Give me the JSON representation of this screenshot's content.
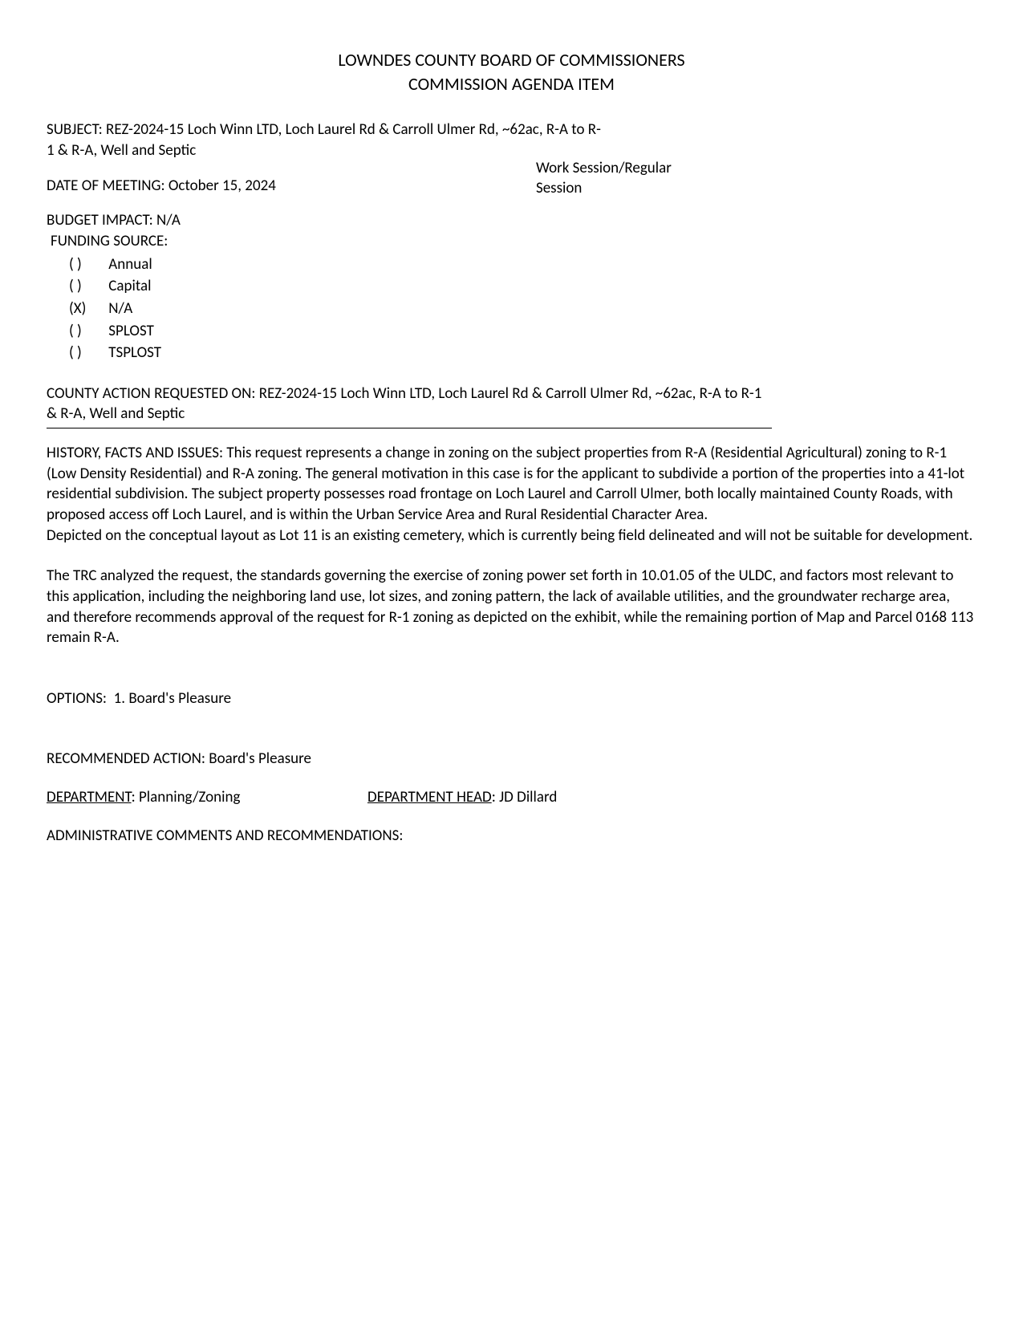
{
  "header": {
    "line1": "LOWNDES COUNTY BOARD OF COMMISSIONERS",
    "line2": "COMMISSION AGENDA ITEM"
  },
  "subject": {
    "label": "SUBJECT:",
    "text": "REZ-2024-15 Loch Winn LTD, Loch Laurel Rd & Carroll Ulmer Rd, ~62ac, R-A to R-1 & R-A, Well and Septic"
  },
  "meeting": {
    "label": "DATE OF MEETING:",
    "date": "October 15, 2024",
    "session_type": "Work Session/Regular Session"
  },
  "budget": {
    "label": "BUDGET IMPACT:",
    "value": "N/A"
  },
  "funding": {
    "label": "FUNDING SOURCE:",
    "options": [
      {
        "mark": "( )",
        "label": "Annual"
      },
      {
        "mark": "( )",
        "label": "Capital"
      },
      {
        "mark": "(X)",
        "label": "N/A"
      },
      {
        "mark": "( )",
        "label": "SPLOST"
      },
      {
        "mark": "( )",
        "label": "TSPLOST"
      }
    ]
  },
  "action": {
    "label": "COUNTY ACTION REQUESTED ON:",
    "text": "REZ-2024-15 Loch Winn LTD, Loch Laurel Rd & Carroll Ulmer Rd, ~62ac, R-A to R-1 & R-A, Well and Septic"
  },
  "history": {
    "label": "HISTORY, FACTS AND ISSUES:",
    "para1": "This request represents a change in zoning on the subject properties from R-A (Residential Agricultural) zoning to R-1 (Low Density Residential) and R-A zoning.  The general motivation in this case is for the applicant to subdivide a portion of the properties into a 41-lot residential subdivision. The subject property possesses road frontage on Loch Laurel and Carroll Ulmer, both locally maintained County Roads, with proposed access off Loch Laurel, and is within the Urban Service Area and Rural Residential Character Area.",
    "para2": "Depicted on the conceptual layout as Lot 11 is an existing cemetery, which is currently being field delineated and will not be suitable for development.",
    "para3": "The TRC analyzed the request, the standards governing the exercise of zoning power set forth in 10.01.05 of the ULDC, and factors most relevant to this application, including the neighboring land use, lot sizes, and zoning pattern, the lack of available utilities, and the groundwater recharge area, and therefore recommends approval of the request for R-1 zoning as depicted on the exhibit, while the remaining portion of Map and Parcel 0168 113 remain R-A."
  },
  "options": {
    "label": "OPTIONS:",
    "text": "1. Board's Pleasure"
  },
  "recommended": {
    "label": "RECOMMENDED ACTION:",
    "text": "Board's Pleasure"
  },
  "department": {
    "label": "DEPARTMENT",
    "value": "Planning/Zoning",
    "head_label": "DEPARTMENT HEAD",
    "head_value": "JD Dillard"
  },
  "admin": {
    "label": "ADMINISTRATIVE COMMENTS AND RECOMMENDATIONS:"
  }
}
